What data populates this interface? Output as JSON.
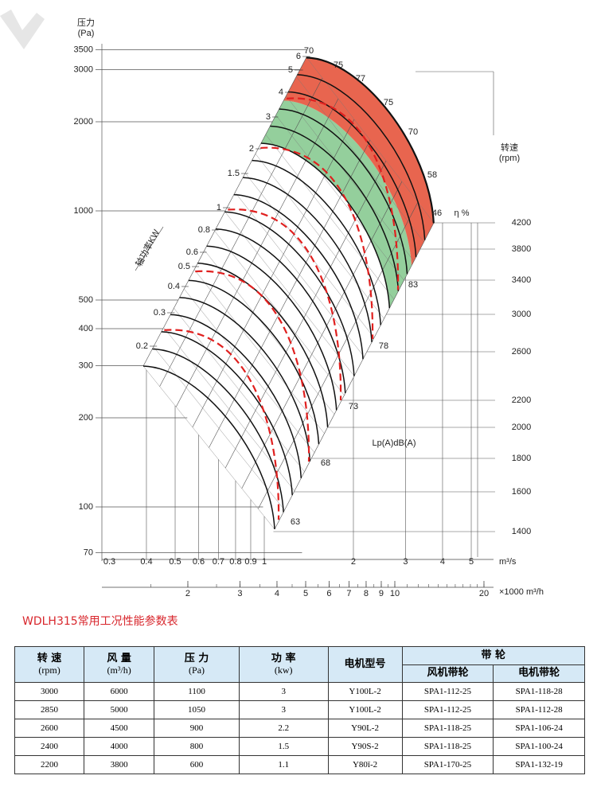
{
  "chart": {
    "y_axis_label": [
      "压力",
      "(Pa)"
    ],
    "y_ticks": [
      "3500",
      "3000",
      "2000",
      "1000",
      "500",
      "400",
      "300",
      "200",
      "100",
      "70"
    ],
    "x_ticks": [
      "0.3",
      "0.4",
      "0.5",
      "0.6",
      "0.7",
      "0.8",
      "0.9",
      "1",
      "2",
      "3",
      "4",
      "5"
    ],
    "x_unit": "m³/s",
    "x2_ticks": [
      "2",
      "3",
      "4",
      "5",
      "6",
      "7",
      "8",
      "9",
      "10",
      "20"
    ],
    "x2_unit": "×1000 m³/h",
    "rpm_label": [
      "转速",
      "(rpm)"
    ],
    "rpm_ticks": [
      "4200",
      "3800",
      "3400",
      "3000",
      "2600",
      "2200",
      "2000",
      "1800",
      "1600",
      "1400"
    ],
    "power_label": "轴功率KW",
    "power_ticks": [
      "0.2",
      "0.3",
      "0.4",
      "0.5",
      "0.6",
      "0.8",
      "1",
      "1.5",
      "2",
      "3",
      "4",
      "5",
      "6"
    ],
    "efficiency_label": "η %",
    "efficiency_ticks": [
      "70",
      "75",
      "77",
      "75",
      "70",
      "58",
      "46"
    ],
    "noise_label": "Lp(A)dB(A)",
    "noise_ticks": [
      "63",
      "68",
      "73",
      "78",
      "83"
    ]
  },
  "table": {
    "title": "WDLH315常用工况性能参数表",
    "header": [
      {
        "label": "转 速",
        "unit": "(rpm)"
      },
      {
        "label": "风 量",
        "unit": "(m³/h)"
      },
      {
        "label": "压 力",
        "unit": "(Pa)"
      },
      {
        "label": "功 率",
        "unit": "(kw)"
      },
      {
        "label": "电机型号"
      },
      {
        "label": "带 轮",
        "sub": [
          "风机带轮",
          "电机带轮"
        ]
      }
    ],
    "rows": [
      [
        3000,
        6000,
        1100,
        3,
        "Y100L-2",
        "SPA1-112-25",
        "SPA1-118-28"
      ],
      [
        2850,
        5000,
        1050,
        3,
        "Y100L-2",
        "SPA1-112-25",
        "SPA1-112-28"
      ],
      [
        2600,
        4500,
        900,
        2.2,
        "Y90L-2",
        "SPA1-118-25",
        "SPA1-106-24"
      ],
      [
        2400,
        4000,
        800,
        1.5,
        "Y90S-2",
        "SPA1-118-25",
        "SPA1-100-24"
      ],
      [
        2200,
        3800,
        600,
        1.1,
        "Y80ǐ-2",
        "SPA1-170-25",
        "SPA1-132-19"
      ]
    ]
  }
}
